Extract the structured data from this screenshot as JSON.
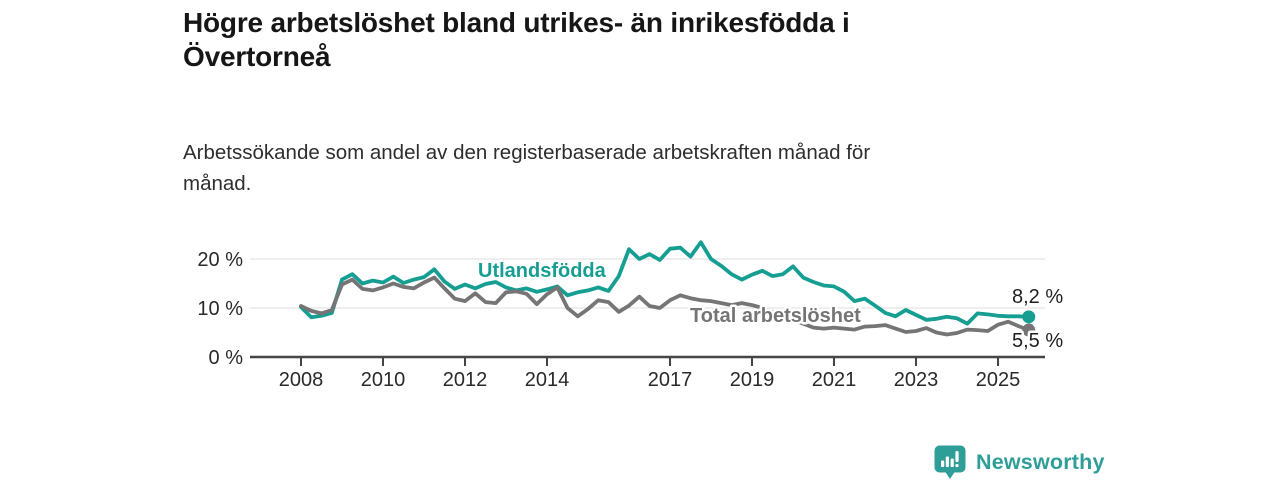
{
  "header": {
    "title_lines": [
      "Högre arbetslöshet bland utrikes- än inrikesfödda i",
      "Övertorneå"
    ],
    "subtitle_lines": [
      "Arbetssökande som andel av den registerbaserade arbetskraften månad för",
      "månad."
    ]
  },
  "chart_data": {
    "type": "line",
    "unit": "%",
    "title": "Högre arbetslöshet bland utrikes- än inrikesfödda i Övertorneå",
    "subtitle": "Arbetssökande som andel av den registerbaserade arbetskraften månad för månad.",
    "xlabel": "",
    "ylabel": "",
    "grid": "horizontal-only",
    "legend_position": "inline-on-lines",
    "x_start": 2008,
    "x_interval": 0.25,
    "x_end": 2025.75,
    "ylim": [
      0,
      25
    ],
    "x_ticks": [
      2008,
      2010,
      2012,
      2014,
      2017,
      2019,
      2021,
      2023,
      2025
    ],
    "y_ticks": [
      {
        "label": "0 %",
        "value": 0
      },
      {
        "label": "10 %",
        "value": 10
      },
      {
        "label": "20 %",
        "value": 20
      }
    ],
    "series": [
      {
        "name": "Utlandsfödda",
        "color": "#169E92",
        "end_label": "8,2 %",
        "end_value": 8.2,
        "values": [
          10.2,
          8.1,
          8.4,
          9.0,
          15.8,
          16.9,
          15.0,
          15.6,
          15.2,
          16.4,
          15.1,
          15.8,
          16.3,
          17.9,
          15.4,
          13.9,
          14.8,
          14.0,
          14.9,
          15.3,
          14.2,
          13.6,
          14.0,
          13.3,
          13.8,
          14.4,
          12.6,
          13.2,
          13.6,
          14.2,
          13.5,
          16.5,
          22.0,
          20.0,
          21.0,
          19.8,
          22.1,
          22.3,
          20.5,
          23.4,
          20.0,
          18.6,
          16.9,
          15.8,
          16.8,
          17.6,
          16.5,
          16.9,
          18.5,
          16.2,
          15.3,
          14.6,
          14.4,
          13.3,
          11.4,
          11.9,
          10.5,
          9.0,
          8.3,
          9.6,
          8.6,
          7.6,
          7.8,
          8.2,
          7.9,
          6.8,
          8.9,
          8.7,
          8.4,
          8.3,
          8.3,
          8.2
        ]
      },
      {
        "name": "Total arbetslöshet",
        "color": "#757575",
        "end_label": "5,5 %",
        "end_value": 5.5,
        "values": [
          10.4,
          9.4,
          8.9,
          9.6,
          14.8,
          15.8,
          13.9,
          13.6,
          14.2,
          15.0,
          14.3,
          14.0,
          15.2,
          16.2,
          14.0,
          11.9,
          11.4,
          13.0,
          11.2,
          11.0,
          13.2,
          13.4,
          12.9,
          10.8,
          12.8,
          14.2,
          10.0,
          8.3,
          9.8,
          11.6,
          11.2,
          9.2,
          10.5,
          12.3,
          10.4,
          10.0,
          11.6,
          12.6,
          12.0,
          11.6,
          11.4,
          11.0,
          10.6,
          11.0,
          10.6,
          10.0,
          9.2,
          8.4,
          7.6,
          6.8,
          6.0,
          5.8,
          6.0,
          5.8,
          5.6,
          6.2,
          6.3,
          6.5,
          5.8,
          5.1,
          5.3,
          5.9,
          5.0,
          4.6,
          4.9,
          5.6,
          5.5,
          5.3,
          6.6,
          7.2,
          6.3,
          5.5
        ]
      }
    ]
  },
  "branding": {
    "name": "Newsworthy",
    "color": "#2F9E99",
    "icon": "bar-chart-speech-bubble-icon"
  }
}
